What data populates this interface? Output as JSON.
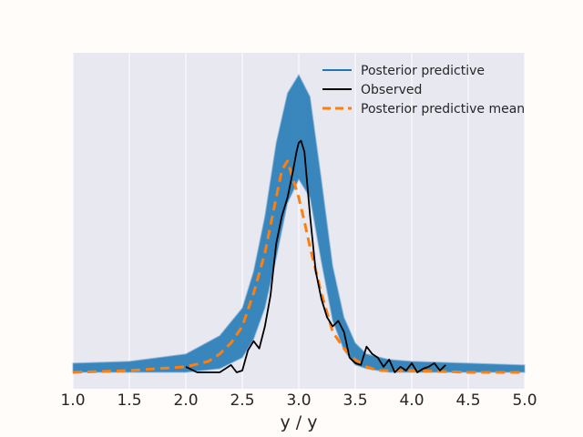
{
  "chart_data": {
    "type": "line",
    "title": "",
    "xlabel": "y / y",
    "ylabel": "",
    "xlim": [
      1.0,
      5.0
    ],
    "ylim": [
      0,
      1.6
    ],
    "grid": true,
    "x_ticks": [
      1.0,
      1.5,
      2.0,
      2.5,
      3.0,
      3.5,
      4.0,
      4.5,
      5.0
    ],
    "x_tick_labels": [
      "1.0",
      "1.5",
      "2.0",
      "2.5",
      "3.0",
      "3.5",
      "4.0",
      "4.5",
      "5.0"
    ],
    "legend_position": "top-right",
    "series": [
      {
        "name": "Posterior predictive",
        "color": "#1f77b4",
        "style": "band",
        "x": [
          1.0,
          1.5,
          2.0,
          2.3,
          2.5,
          2.6,
          2.7,
          2.8,
          2.9,
          3.0,
          3.1,
          3.2,
          3.3,
          3.4,
          3.5,
          3.6,
          3.8,
          4.0,
          4.5,
          5.0
        ],
        "lower": [
          0.0,
          0.0,
          0.0,
          0.02,
          0.08,
          0.18,
          0.35,
          0.62,
          0.92,
          1.05,
          0.95,
          0.6,
          0.28,
          0.12,
          0.04,
          0.02,
          0.0,
          0.0,
          0.0,
          0.0
        ],
        "upper": [
          0.05,
          0.06,
          0.1,
          0.2,
          0.35,
          0.55,
          0.85,
          1.25,
          1.52,
          1.62,
          1.5,
          1.05,
          0.58,
          0.3,
          0.16,
          0.1,
          0.07,
          0.06,
          0.05,
          0.04
        ]
      },
      {
        "name": "Observed",
        "color": "#000000",
        "style": "solid",
        "x": [
          2.0,
          2.1,
          2.15,
          2.2,
          2.3,
          2.35,
          2.4,
          2.45,
          2.5,
          2.55,
          2.6,
          2.65,
          2.7,
          2.75,
          2.8,
          2.85,
          2.9,
          2.95,
          2.98,
          3.0,
          3.02,
          3.05,
          3.1,
          3.15,
          3.2,
          3.25,
          3.3,
          3.35,
          3.4,
          3.45,
          3.5,
          3.55,
          3.6,
          3.65,
          3.7,
          3.75,
          3.8,
          3.85,
          3.9,
          3.95,
          4.0,
          4.05,
          4.1,
          4.15,
          4.2,
          4.25,
          4.3
        ],
        "y": [
          0.03,
          0.0,
          0.0,
          0.0,
          0.0,
          0.02,
          0.04,
          0.0,
          0.01,
          0.12,
          0.17,
          0.13,
          0.25,
          0.42,
          0.7,
          0.85,
          0.95,
          1.1,
          1.2,
          1.25,
          1.26,
          1.2,
          0.85,
          0.55,
          0.4,
          0.3,
          0.25,
          0.28,
          0.22,
          0.08,
          0.05,
          0.04,
          0.14,
          0.1,
          0.08,
          0.03,
          0.07,
          0.0,
          0.03,
          0.01,
          0.05,
          0.0,
          0.02,
          0.03,
          0.05,
          0.01,
          0.04
        ]
      },
      {
        "name": "Posterior predictive mean",
        "color": "#ff7f0e",
        "style": "dashed",
        "x": [
          1.0,
          1.5,
          2.0,
          2.2,
          2.3,
          2.4,
          2.5,
          2.6,
          2.7,
          2.8,
          2.85,
          2.9,
          2.95,
          3.0,
          3.05,
          3.1,
          3.2,
          3.3,
          3.4,
          3.5,
          3.6,
          3.7,
          4.0,
          4.5,
          5.0
        ],
        "y": [
          0.0,
          0.01,
          0.03,
          0.06,
          0.1,
          0.16,
          0.25,
          0.43,
          0.65,
          0.95,
          1.1,
          1.15,
          1.05,
          0.95,
          0.82,
          0.68,
          0.43,
          0.22,
          0.13,
          0.07,
          0.03,
          0.01,
          0.01,
          0.0,
          0.0
        ]
      }
    ]
  }
}
